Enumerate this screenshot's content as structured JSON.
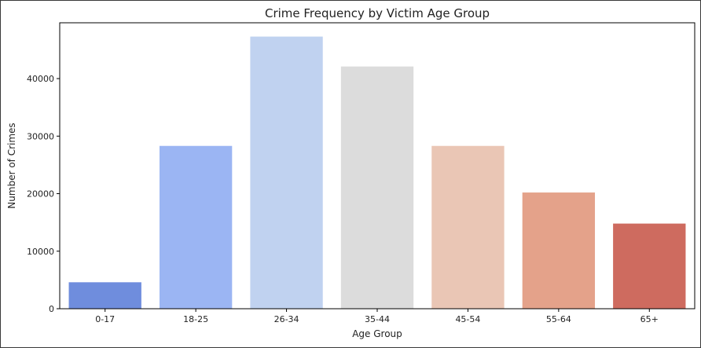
{
  "chart_data": {
    "type": "bar",
    "title": "Crime Frequency by Victim Age Group",
    "xlabel": "Age Group",
    "ylabel": "Number of Crimes",
    "categories": [
      "0-17",
      "18-25",
      "26-34",
      "35-44",
      "45-54",
      "55-64",
      "65+"
    ],
    "values": [
      4600,
      28300,
      47300,
      42100,
      28300,
      20200,
      14800
    ],
    "colors": [
      "#6f8ddd",
      "#9bb5f3",
      "#c0d2f0",
      "#dcdcdc",
      "#eac6b5",
      "#e4a28a",
      "#ce6b5f"
    ],
    "yticks": [
      0,
      10000,
      20000,
      30000,
      40000
    ],
    "ylim": [
      0,
      49700
    ],
    "grid": false,
    "legend": "none"
  }
}
